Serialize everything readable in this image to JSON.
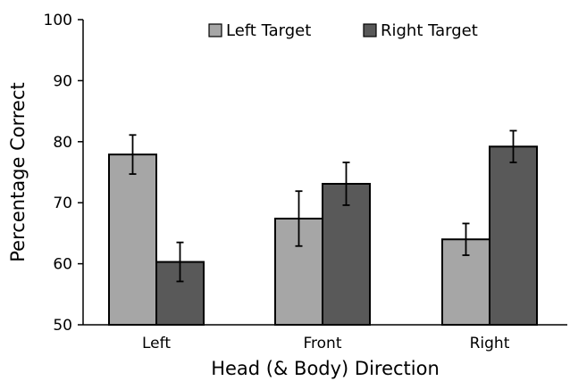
{
  "chart_data": {
    "type": "bar",
    "categories": [
      "Left",
      "Front",
      "Right"
    ],
    "series": [
      {
        "name": "Left Target",
        "values": [
          77.9,
          67.4,
          64.0
        ],
        "error": [
          3.2,
          4.5,
          2.6
        ],
        "color": "#a6a6a6"
      },
      {
        "name": "Right Target",
        "values": [
          60.3,
          73.1,
          79.2
        ],
        "error": [
          3.2,
          3.5,
          2.6
        ],
        "color": "#595959"
      }
    ],
    "xlabel": "Head (& Body) Direction",
    "ylabel": "Percentage Correct",
    "ylim": [
      50,
      100
    ],
    "yticks": [
      "50",
      "60",
      "70",
      "80",
      "90",
      "100"
    ],
    "grid": false,
    "legend": "top"
  }
}
